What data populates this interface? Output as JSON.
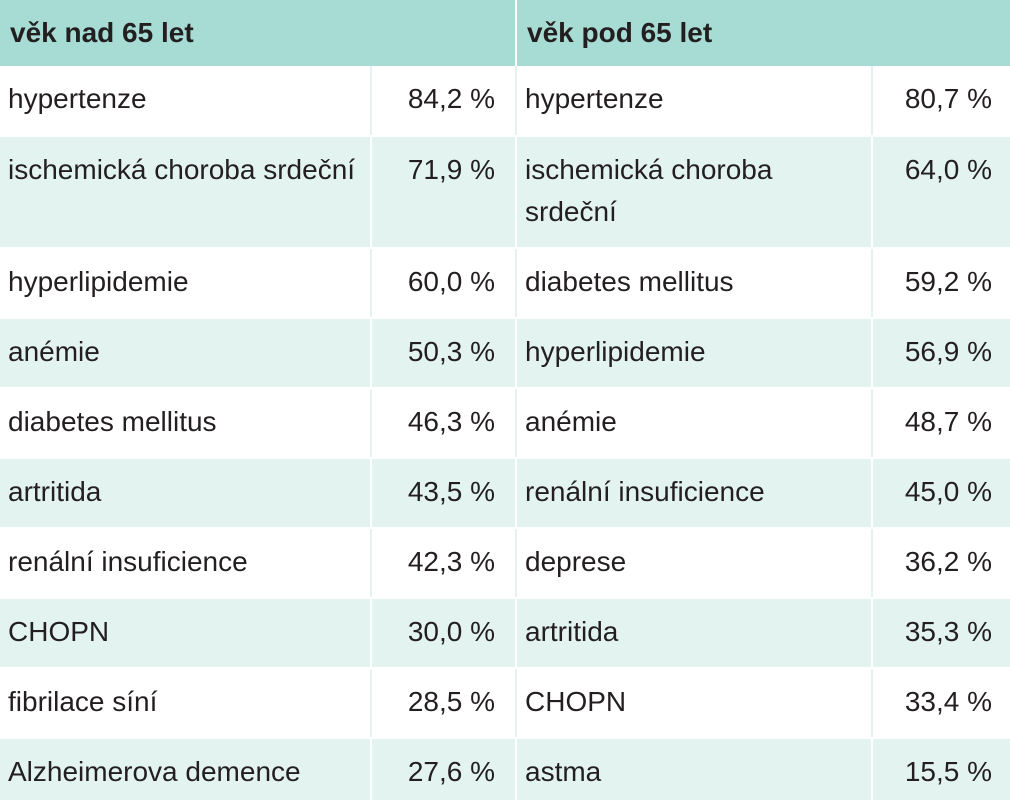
{
  "header": {
    "group_over_65": "věk nad 65 let",
    "group_under_65": "věk pod 65 let"
  },
  "rows": [
    {
      "over_name": "hypertenze",
      "over_value": "84,2 %",
      "under_name": "hypertenze",
      "under_value": "80,7 %"
    },
    {
      "over_name": "ischemická choroba srdeční",
      "over_value": "71,9 %",
      "under_name": "ischemická choroba srdeční",
      "under_value": "64,0 %"
    },
    {
      "over_name": "hyperlipidemie",
      "over_value": "60,0 %",
      "under_name": "diabetes mellitus",
      "under_value": "59,2 %"
    },
    {
      "over_name": "anémie",
      "over_value": "50,3 %",
      "under_name": "hyperlipidemie",
      "under_value": "56,9 %"
    },
    {
      "over_name": "diabetes mellitus",
      "over_value": "46,3 %",
      "under_name": "anémie",
      "under_value": "48,7 %"
    },
    {
      "over_name": "artritida",
      "over_value": "43,5 %",
      "under_name": "renální insuficience",
      "under_value": "45,0 %"
    },
    {
      "over_name": "renální insuficience",
      "over_value": "42,3 %",
      "under_name": "deprese",
      "under_value": "36,2 %"
    },
    {
      "over_name": "CHOPN",
      "over_value": "30,0 %",
      "under_name": "artritida",
      "under_value": "35,3 %"
    },
    {
      "over_name": "fibrilace síní",
      "over_value": "28,5 %",
      "under_name": "CHOPN",
      "under_value": "33,4 %"
    },
    {
      "over_name": "Alzheimerova demence",
      "over_value": "27,6 %",
      "under_name": "astma",
      "under_value": "15,5 %"
    }
  ],
  "colors": {
    "header_bg": "#a6dcd3",
    "stripe_bg": "#e3f3f0",
    "text": "#231f20"
  }
}
